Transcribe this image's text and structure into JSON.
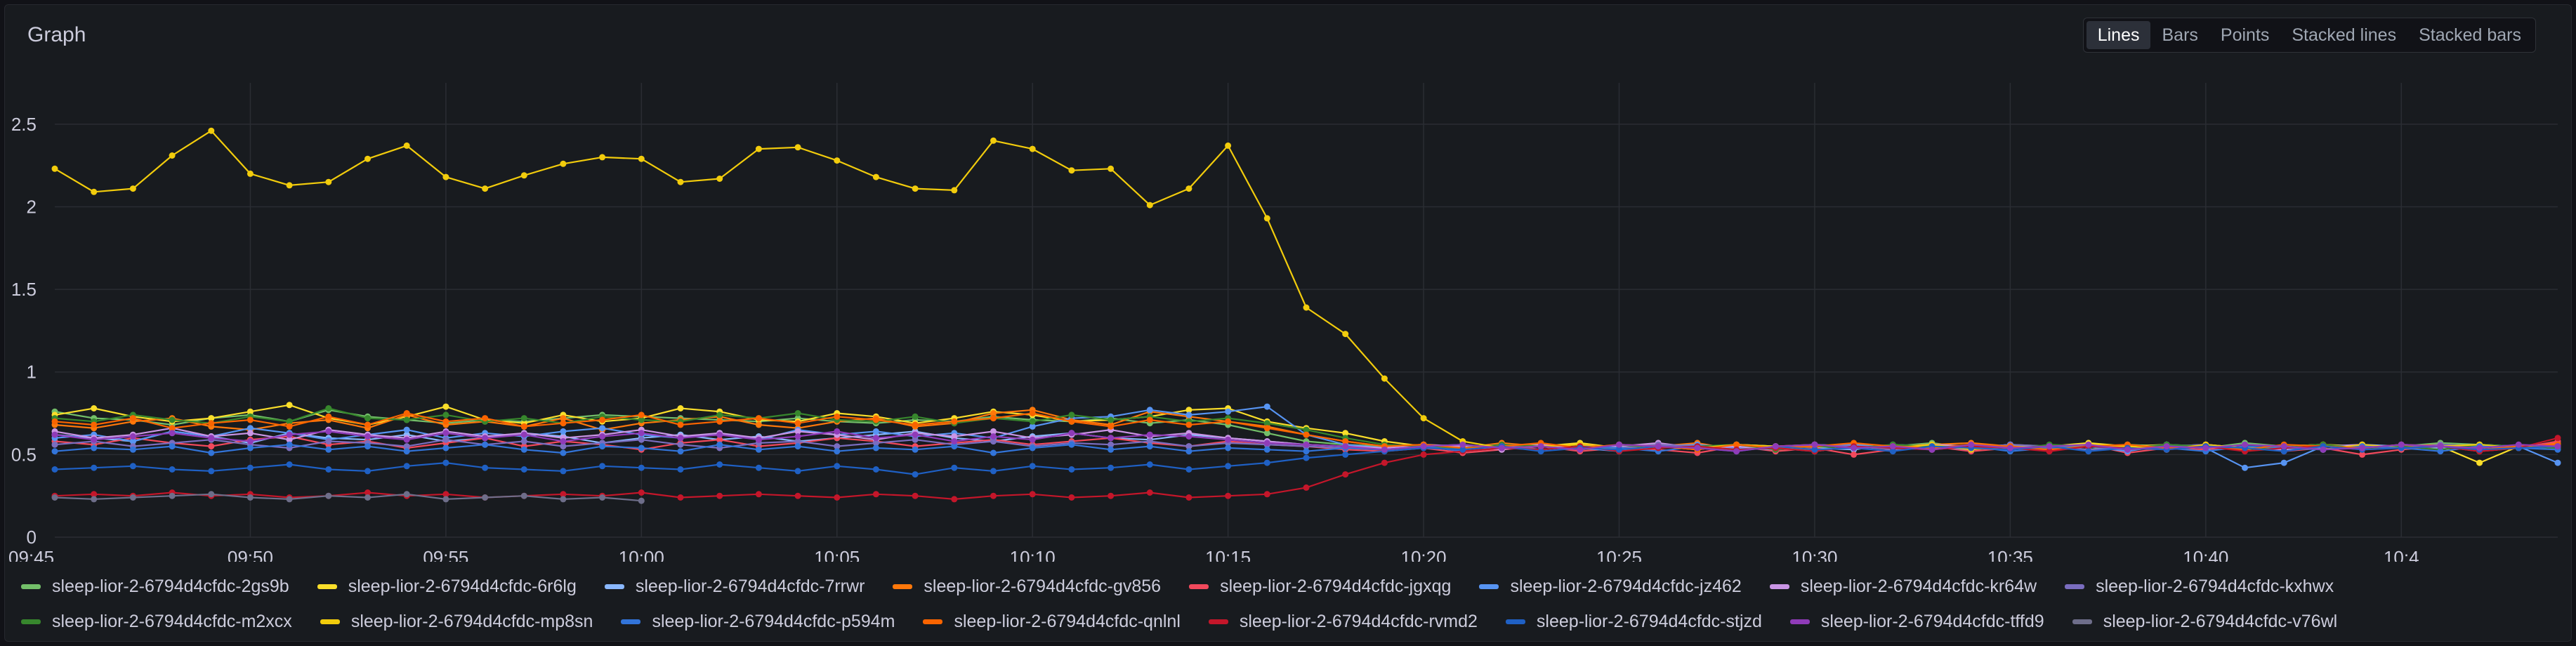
{
  "panel": {
    "title": "Graph"
  },
  "viz_types": [
    {
      "label": "Lines",
      "active": true
    },
    {
      "label": "Bars",
      "active": false
    },
    {
      "label": "Points",
      "active": false
    },
    {
      "label": "Stacked lines",
      "active": false
    },
    {
      "label": "Stacked bars",
      "active": false
    }
  ],
  "chart_data": {
    "type": "line",
    "title": "",
    "xlabel": "",
    "ylabel": "",
    "ylim": [
      0,
      2.75
    ],
    "xlim": [
      "09:45",
      "10:49"
    ],
    "grid": true,
    "legend_position": "bottom",
    "x_ticks": [
      "09:45",
      "09:50",
      "09:55",
      "10:00",
      "10:05",
      "10:10",
      "10:15",
      "10:20",
      "10:25",
      "10:30",
      "10:35",
      "10:40",
      "10:4"
    ],
    "y_ticks": [
      "0",
      "0.5",
      "1",
      "1.5",
      "2",
      "2.5"
    ],
    "x_start": "09:45",
    "x_step_minutes": 1,
    "series": [
      {
        "name": "sleep-lior-2-6794d4cfdc-2gs9b",
        "color": "#73bf69",
        "values": [
          0.76,
          0.72,
          0.71,
          0.68,
          0.72,
          0.74,
          0.7,
          0.77,
          0.73,
          0.71,
          0.69,
          0.71,
          0.7,
          0.72,
          0.74,
          0.73,
          0.72,
          0.71,
          0.7,
          0.72,
          0.7,
          0.69,
          0.71,
          0.7,
          0.73,
          0.71,
          0.7,
          0.72,
          0.69,
          0.71,
          0.68,
          0.63,
          0.58,
          0.56,
          0.55,
          0.56,
          0.54,
          0.55,
          0.56,
          0.53,
          0.55,
          0.56,
          0.54,
          0.53,
          0.55,
          0.56,
          0.54,
          0.55,
          0.57,
          0.54,
          0.56,
          0.55,
          0.53,
          0.56,
          0.55,
          0.54,
          0.57,
          0.55,
          0.56,
          0.54,
          0.55,
          0.57,
          0.56,
          0.55,
          0.56
        ]
      },
      {
        "name": "sleep-lior-2-6794d4cfdc-6r6lg",
        "color": "#fade2a",
        "values": [
          0.74,
          0.78,
          0.73,
          0.7,
          0.72,
          0.76,
          0.8,
          0.72,
          0.68,
          0.73,
          0.79,
          0.71,
          0.69,
          0.74,
          0.7,
          0.72,
          0.78,
          0.76,
          0.71,
          0.7,
          0.75,
          0.73,
          0.69,
          0.72,
          0.76,
          0.74,
          0.7,
          0.71,
          0.73,
          0.77,
          0.78,
          0.7,
          0.66,
          0.63,
          0.58,
          0.55,
          0.54,
          0.56,
          0.55,
          0.57,
          0.54,
          0.55,
          0.53,
          0.56,
          0.55,
          0.54,
          0.56,
          0.55,
          0.53,
          0.56,
          0.54,
          0.55,
          0.57,
          0.55,
          0.56,
          0.54,
          0.53,
          0.55,
          0.56,
          0.55,
          0.54,
          0.55,
          0.45,
          0.55,
          0.56
        ]
      },
      {
        "name": "sleep-lior-2-6794d4cfdc-7rrwr",
        "color": "#8ab8ff",
        "values": [
          0.62,
          0.6,
          0.58,
          0.64,
          0.61,
          0.57,
          0.63,
          0.6,
          0.59,
          0.62,
          0.58,
          0.6,
          0.63,
          0.61,
          0.57,
          0.6,
          0.62,
          0.59,
          0.61,
          0.58,
          0.6,
          0.62,
          0.64,
          0.6,
          0.58,
          0.61,
          0.63,
          0.6,
          0.59,
          0.62,
          0.6,
          0.58,
          0.56,
          0.55,
          0.54,
          0.55,
          0.56,
          0.54,
          0.55,
          0.53,
          0.56,
          0.55,
          0.54,
          0.56,
          0.55,
          0.54,
          0.53,
          0.56,
          0.55,
          0.54,
          0.56,
          0.53,
          0.55,
          0.54,
          0.56,
          0.55,
          0.54,
          0.55,
          0.53,
          0.56,
          0.55,
          0.54,
          0.56,
          0.55,
          0.54
        ]
      },
      {
        "name": "sleep-lior-2-6794d4cfdc-gv856",
        "color": "#ff780a",
        "values": [
          0.68,
          0.66,
          0.7,
          0.72,
          0.67,
          0.65,
          0.69,
          0.71,
          0.66,
          0.74,
          0.68,
          0.7,
          0.67,
          0.72,
          0.65,
          0.69,
          0.71,
          0.73,
          0.68,
          0.66,
          0.7,
          0.72,
          0.67,
          0.69,
          0.75,
          0.77,
          0.71,
          0.68,
          0.76,
          0.73,
          0.7,
          0.67,
          0.62,
          0.58,
          0.55,
          0.56,
          0.54,
          0.57,
          0.55,
          0.56,
          0.54,
          0.55,
          0.57,
          0.53,
          0.55,
          0.56,
          0.54,
          0.55,
          0.56,
          0.57,
          0.55,
          0.54,
          0.56,
          0.55,
          0.53,
          0.56,
          0.54,
          0.55,
          0.56,
          0.54,
          0.55,
          0.56,
          0.55,
          0.54,
          0.57
        ]
      },
      {
        "name": "sleep-lior-2-6794d4cfdc-jgxqg",
        "color": "#f2495c",
        "values": [
          0.58,
          0.56,
          0.6,
          0.57,
          0.55,
          0.59,
          0.61,
          0.56,
          0.58,
          0.54,
          0.57,
          0.6,
          0.55,
          0.58,
          0.56,
          0.53,
          0.57,
          0.59,
          0.55,
          0.57,
          0.6,
          0.58,
          0.55,
          0.57,
          0.59,
          0.56,
          0.58,
          0.6,
          0.57,
          0.55,
          0.58,
          0.56,
          0.55,
          0.53,
          0.52,
          0.54,
          0.51,
          0.53,
          0.55,
          0.52,
          0.54,
          0.53,
          0.51,
          0.55,
          0.52,
          0.54,
          0.5,
          0.53,
          0.55,
          0.52,
          0.54,
          0.53,
          0.56,
          0.51,
          0.54,
          0.53,
          0.55,
          0.52,
          0.54,
          0.5,
          0.53,
          0.55,
          0.52,
          0.54,
          0.58
        ]
      },
      {
        "name": "sleep-lior-2-6794d4cfdc-jz462",
        "color": "#5794f2",
        "values": [
          0.6,
          0.62,
          0.58,
          0.64,
          0.61,
          0.66,
          0.63,
          0.59,
          0.62,
          0.65,
          0.6,
          0.63,
          0.61,
          0.64,
          0.66,
          0.62,
          0.6,
          0.63,
          0.59,
          0.65,
          0.62,
          0.64,
          0.61,
          0.63,
          0.6,
          0.67,
          0.72,
          0.73,
          0.77,
          0.74,
          0.76,
          0.79,
          0.62,
          0.56,
          0.54,
          0.55,
          0.53,
          0.56,
          0.55,
          0.54,
          0.52,
          0.55,
          0.56,
          0.54,
          0.53,
          0.55,
          0.56,
          0.54,
          0.55,
          0.53,
          0.56,
          0.54,
          0.55,
          0.52,
          0.56,
          0.54,
          0.42,
          0.45,
          0.55,
          0.54,
          0.56,
          0.55,
          0.53,
          0.55,
          0.45
        ]
      },
      {
        "name": "sleep-lior-2-6794d4cfdc-kr64w",
        "color": "#ca95e5",
        "values": [
          0.64,
          0.6,
          0.62,
          0.66,
          0.61,
          0.63,
          0.59,
          0.65,
          0.62,
          0.6,
          0.64,
          0.61,
          0.63,
          0.6,
          0.62,
          0.65,
          0.61,
          0.63,
          0.6,
          0.64,
          0.62,
          0.59,
          0.63,
          0.61,
          0.64,
          0.6,
          0.62,
          0.65,
          0.61,
          0.63,
          0.6,
          0.58,
          0.56,
          0.55,
          0.54,
          0.56,
          0.55,
          0.53,
          0.56,
          0.54,
          0.55,
          0.57,
          0.54,
          0.55,
          0.53,
          0.56,
          0.55,
          0.54,
          0.56,
          0.55,
          0.53,
          0.55,
          0.56,
          0.54,
          0.55,
          0.56,
          0.54,
          0.53,
          0.55,
          0.56,
          0.54,
          0.55,
          0.56,
          0.54,
          0.55
        ]
      },
      {
        "name": "sleep-lior-2-6794d4cfdc-kxhwx",
        "color": "#7a6dbf",
        "values": [
          0.56,
          0.58,
          0.55,
          0.57,
          0.59,
          0.56,
          0.54,
          0.58,
          0.57,
          0.55,
          0.59,
          0.56,
          0.58,
          0.55,
          0.57,
          0.59,
          0.56,
          0.54,
          0.57,
          0.58,
          0.55,
          0.57,
          0.59,
          0.56,
          0.58,
          0.55,
          0.57,
          0.56,
          0.58,
          0.55,
          0.57,
          0.56,
          0.55,
          0.54,
          0.53,
          0.55,
          0.54,
          0.56,
          0.53,
          0.55,
          0.54,
          0.56,
          0.55,
          0.53,
          0.54,
          0.56,
          0.55,
          0.53,
          0.55,
          0.54,
          0.56,
          0.55,
          0.53,
          0.54,
          0.55,
          0.56,
          0.54,
          0.55,
          0.53,
          0.55,
          0.54,
          0.56,
          0.55,
          0.54,
          0.55
        ]
      },
      {
        "name": "sleep-lior-2-6794d4cfdc-m2xcx",
        "color": "#37872d",
        "values": [
          0.72,
          0.7,
          0.74,
          0.71,
          0.69,
          0.73,
          0.7,
          0.78,
          0.72,
          0.71,
          0.74,
          0.7,
          0.72,
          0.69,
          0.73,
          0.71,
          0.7,
          0.74,
          0.72,
          0.75,
          0.71,
          0.7,
          0.73,
          0.69,
          0.72,
          0.7,
          0.74,
          0.71,
          0.73,
          0.7,
          0.72,
          0.69,
          0.65,
          0.6,
          0.56,
          0.55,
          0.54,
          0.56,
          0.55,
          0.53,
          0.56,
          0.54,
          0.55,
          0.56,
          0.53,
          0.55,
          0.54,
          0.56,
          0.55,
          0.54,
          0.53,
          0.56,
          0.55,
          0.54,
          0.56,
          0.55,
          0.53,
          0.55,
          0.56,
          0.54,
          0.55,
          0.53,
          0.56,
          0.55,
          0.54
        ]
      },
      {
        "name": "sleep-lior-2-6794d4cfdc-mp8sn",
        "color": "#f2cc0c",
        "values": [
          2.23,
          2.09,
          2.11,
          2.31,
          2.46,
          2.2,
          2.13,
          2.15,
          2.29,
          2.37,
          2.18,
          2.11,
          2.19,
          2.26,
          2.3,
          2.29,
          2.15,
          2.17,
          2.35,
          2.36,
          2.28,
          2.18,
          2.11,
          2.1,
          2.4,
          2.35,
          2.22,
          2.23,
          2.01,
          2.11,
          2.37,
          1.93,
          1.39,
          1.23,
          0.96,
          0.72,
          0.58,
          0.54,
          0.55,
          0.56,
          0.53,
          0.55,
          0.54,
          0.56,
          0.55,
          0.52,
          0.55,
          0.54,
          0.56,
          0.53,
          0.55,
          0.54,
          0.56,
          0.55,
          0.53,
          0.56,
          0.54,
          0.55,
          0.53,
          0.56,
          0.54,
          0.55,
          0.56,
          0.54,
          0.55
        ]
      },
      {
        "name": "sleep-lior-2-6794d4cfdc-p594m",
        "color": "#3274d9",
        "values": [
          0.52,
          0.54,
          0.53,
          0.55,
          0.51,
          0.54,
          0.56,
          0.53,
          0.55,
          0.52,
          0.54,
          0.56,
          0.53,
          0.51,
          0.55,
          0.54,
          0.52,
          0.56,
          0.53,
          0.55,
          0.52,
          0.54,
          0.53,
          0.55,
          0.51,
          0.54,
          0.56,
          0.53,
          0.55,
          0.52,
          0.54,
          0.53,
          0.52,
          0.54,
          0.53,
          0.55,
          0.52,
          0.54,
          0.53,
          0.55,
          0.54,
          0.52,
          0.55,
          0.53,
          0.54,
          0.52,
          0.55,
          0.54,
          0.53,
          0.55,
          0.52,
          0.54,
          0.55,
          0.53,
          0.54,
          0.52,
          0.55,
          0.54,
          0.53,
          0.55,
          0.54,
          0.52,
          0.55,
          0.54,
          0.53
        ]
      },
      {
        "name": "sleep-lior-2-6794d4cfdc-qnlnl",
        "color": "#fa6400",
        "values": [
          0.7,
          0.68,
          0.72,
          0.66,
          0.69,
          0.71,
          0.67,
          0.73,
          0.68,
          0.75,
          0.7,
          0.72,
          0.67,
          0.69,
          0.71,
          0.74,
          0.68,
          0.7,
          0.72,
          0.69,
          0.73,
          0.71,
          0.68,
          0.7,
          0.72,
          0.75,
          0.7,
          0.67,
          0.71,
          0.68,
          0.7,
          0.66,
          0.62,
          0.58,
          0.55,
          0.56,
          0.54,
          0.55,
          0.57,
          0.54,
          0.56,
          0.55,
          0.53,
          0.56,
          0.54,
          0.55,
          0.57,
          0.55,
          0.54,
          0.56,
          0.55,
          0.53,
          0.55,
          0.56,
          0.54,
          0.55,
          0.53,
          0.56,
          0.55,
          0.54,
          0.56,
          0.55,
          0.53,
          0.55,
          0.56
        ]
      },
      {
        "name": "sleep-lior-2-6794d4cfdc-rvmd2",
        "color": "#c4162a",
        "values": [
          0.25,
          0.26,
          0.25,
          0.27,
          0.25,
          0.26,
          0.24,
          0.25,
          0.27,
          0.25,
          0.26,
          0.24,
          0.25,
          0.26,
          0.25,
          0.27,
          0.24,
          0.25,
          0.26,
          0.25,
          0.24,
          0.26,
          0.25,
          0.23,
          0.25,
          0.26,
          0.24,
          0.25,
          0.27,
          0.24,
          0.25,
          0.26,
          0.3,
          0.38,
          0.45,
          0.5,
          0.52,
          0.54,
          0.53,
          0.55,
          0.52,
          0.54,
          0.55,
          0.53,
          0.54,
          0.52,
          0.55,
          0.54,
          0.53,
          0.55,
          0.54,
          0.52,
          0.55,
          0.54,
          0.53,
          0.55,
          0.52,
          0.54,
          0.55,
          0.53,
          0.54,
          0.55,
          0.52,
          0.54,
          0.6
        ]
      },
      {
        "name": "sleep-lior-2-6794d4cfdc-stjzd",
        "color": "#1f60c4",
        "values": [
          0.41,
          0.42,
          0.43,
          0.41,
          0.4,
          0.42,
          0.44,
          0.41,
          0.4,
          0.43,
          0.45,
          0.42,
          0.41,
          0.4,
          0.43,
          0.42,
          0.41,
          0.44,
          0.42,
          0.4,
          0.43,
          0.41,
          0.38,
          0.42,
          0.4,
          0.43,
          0.41,
          0.42,
          0.44,
          0.41,
          0.43,
          0.45,
          0.48,
          0.5,
          0.52,
          0.54,
          0.53,
          0.55,
          0.52,
          0.54,
          0.53,
          0.55,
          0.54,
          0.52,
          0.55,
          0.53,
          0.54,
          0.52,
          0.55,
          0.54,
          0.53,
          0.55,
          0.52,
          0.54,
          0.53,
          0.55,
          0.54,
          0.52,
          0.55,
          0.53,
          0.54,
          0.55,
          0.53,
          0.54,
          0.55
        ]
      },
      {
        "name": "sleep-lior-2-6794d4cfdc-tffd9",
        "color": "#8f3bb8",
        "values": [
          0.62,
          0.59,
          0.61,
          0.63,
          0.6,
          0.58,
          0.62,
          0.64,
          0.61,
          0.59,
          0.63,
          0.6,
          0.62,
          0.58,
          0.61,
          0.63,
          0.6,
          0.62,
          0.59,
          0.61,
          0.64,
          0.6,
          0.62,
          0.58,
          0.61,
          0.59,
          0.63,
          0.6,
          0.62,
          0.61,
          0.59,
          0.57,
          0.56,
          0.55,
          0.53,
          0.55,
          0.56,
          0.54,
          0.55,
          0.53,
          0.56,
          0.55,
          0.54,
          0.52,
          0.55,
          0.56,
          0.54,
          0.55,
          0.53,
          0.56,
          0.54,
          0.55,
          0.56,
          0.53,
          0.55,
          0.54,
          0.56,
          0.55,
          0.53,
          0.54,
          0.56,
          0.55,
          0.54,
          0.56,
          0.55
        ]
      },
      {
        "name": "sleep-lior-2-6794d4cfdc-v76wl",
        "color": "#6e6e8a",
        "values": [
          0.24,
          0.23,
          0.24,
          0.25,
          0.26,
          0.24,
          0.23,
          0.25,
          0.24,
          0.26,
          0.23,
          0.24,
          0.25,
          0.23,
          0.24,
          0.22,
          null,
          null,
          null,
          null,
          null,
          null,
          null,
          null,
          null,
          null,
          null,
          null,
          null,
          null,
          null,
          null,
          null,
          null,
          null,
          null,
          null,
          null,
          null,
          null,
          null,
          null,
          null,
          null,
          null,
          null,
          null,
          null,
          null,
          null,
          null,
          null,
          null,
          null,
          null,
          null,
          null,
          null,
          null,
          null,
          null,
          null,
          null,
          null,
          null
        ]
      }
    ]
  }
}
